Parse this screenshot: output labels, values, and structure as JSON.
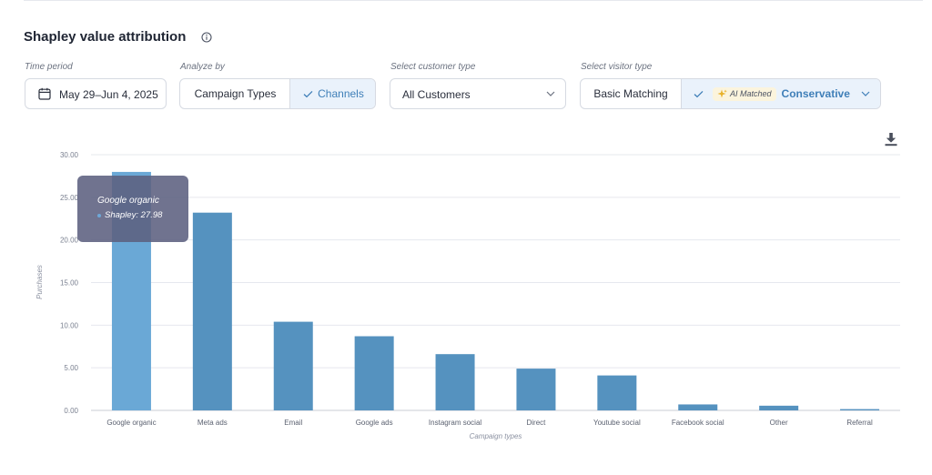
{
  "header": {
    "title": "Shapley value attribution"
  },
  "filters": {
    "time_period": {
      "label": "Time period",
      "value": "May 29–Jun 4, 2025"
    },
    "analyze_by": {
      "label": "Analyze by",
      "options": [
        "Campaign Types",
        "Channels"
      ],
      "selected": "Channels"
    },
    "customer_type": {
      "label": "Select customer type",
      "value": "All Customers"
    },
    "visitor_type": {
      "label": "Select visitor type",
      "option_basic": "Basic Matching",
      "ai_chip": "AI Matched",
      "option_selected": "Conservative"
    }
  },
  "colors": {
    "bar": "#5592bf",
    "bar_highlight": "#6aa8d6",
    "accent": "#3f7fb8"
  },
  "tooltip": {
    "title": "Google organic",
    "series": "Shapley",
    "value": "27.98"
  },
  "chart_data": {
    "type": "bar",
    "xlabel": "Campaign types",
    "ylabel": "Purchases",
    "ylim": [
      0,
      30
    ],
    "yticks": [
      "0.00",
      "5.00",
      "10.00",
      "15.00",
      "20.00",
      "25.00",
      "30.00"
    ],
    "grid": true,
    "categories": [
      "Google organic",
      "Meta ads",
      "Email",
      "Google ads",
      "Instagram social",
      "Direct",
      "Youtube social",
      "Facebook social",
      "Other",
      "Referral"
    ],
    "values": [
      27.98,
      23.2,
      10.4,
      8.7,
      6.6,
      4.9,
      4.1,
      0.7,
      0.55,
      0.15
    ],
    "highlighted": "Google organic"
  }
}
